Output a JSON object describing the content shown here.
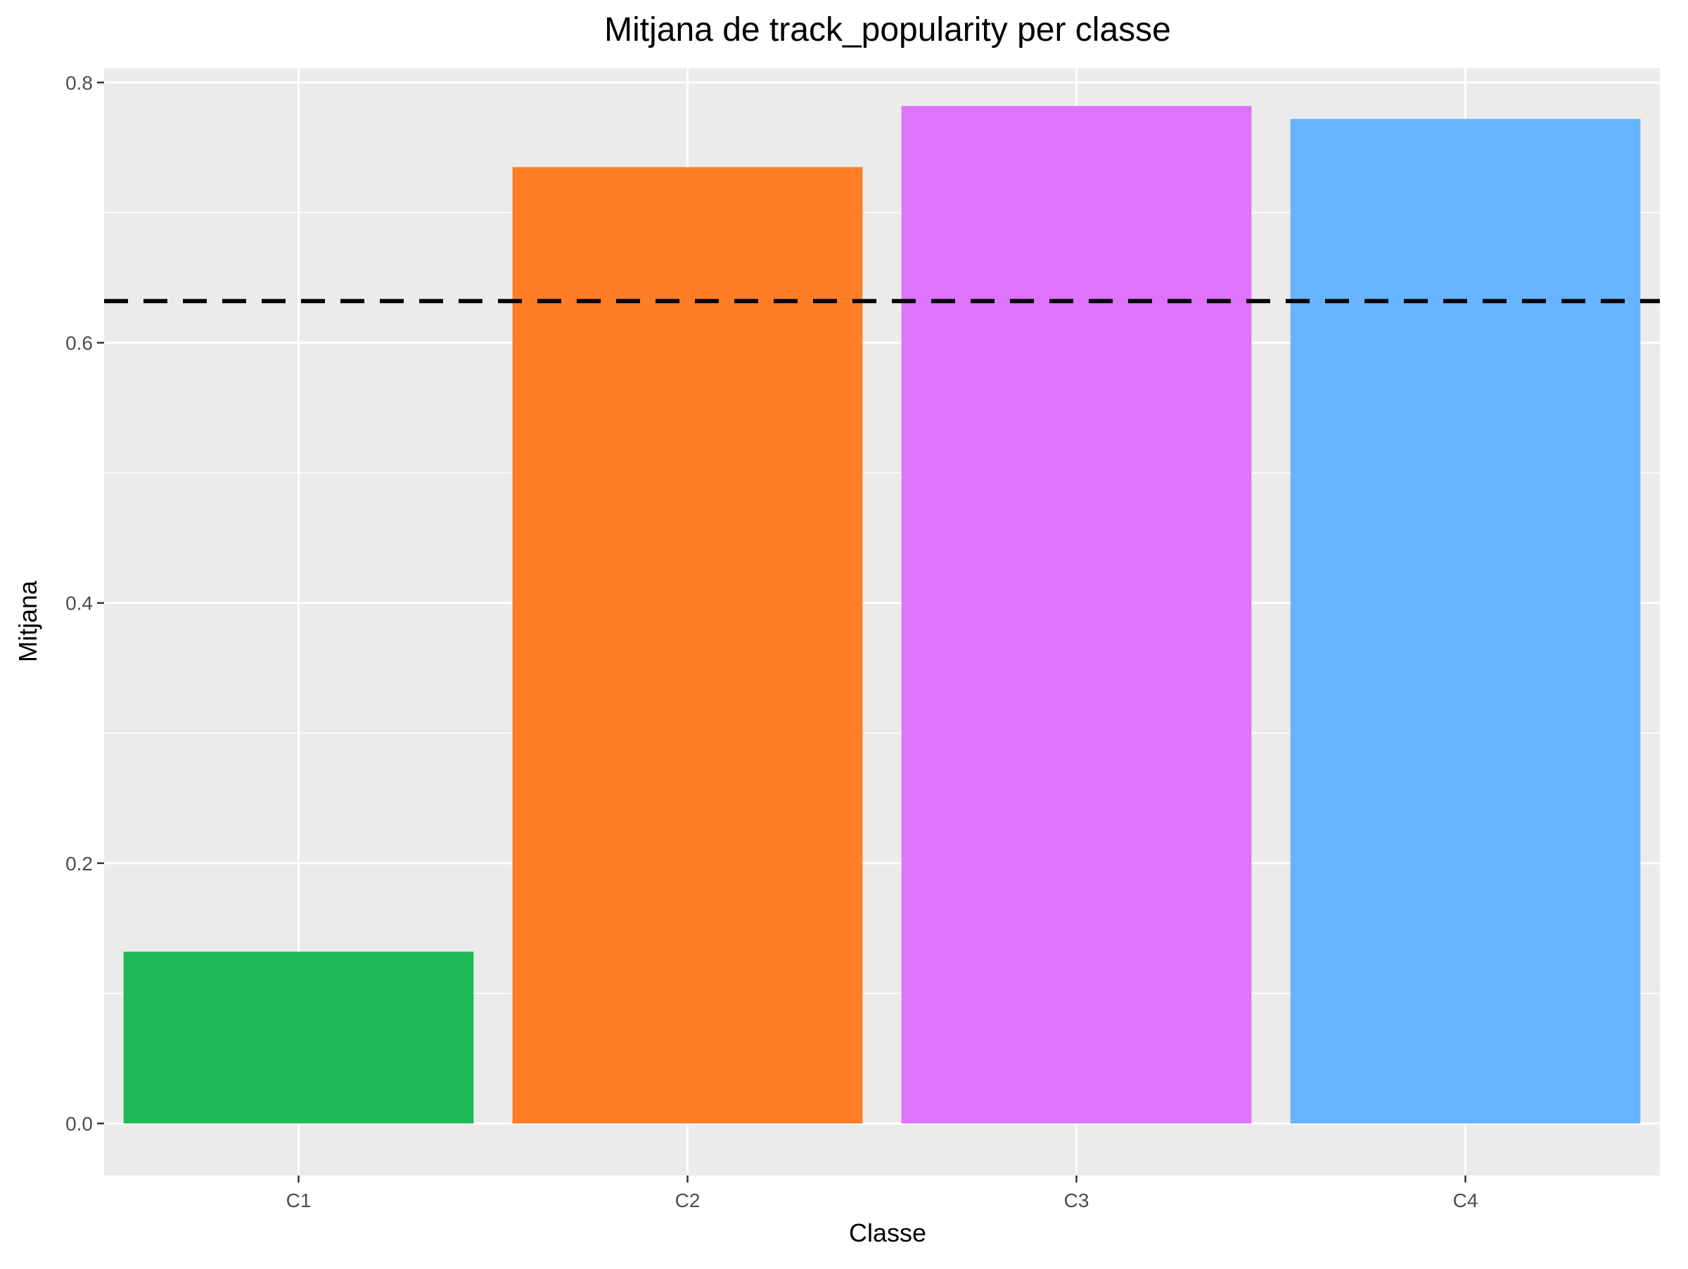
{
  "chart_data": {
    "type": "bar",
    "title": "Mitjana de track_popularity per classe",
    "xlabel": "Classe",
    "ylabel": "Mitjana",
    "categories": [
      "C1",
      "C2",
      "C3",
      "C4"
    ],
    "values": [
      0.132,
      0.735,
      0.782,
      0.772
    ],
    "colors": [
      "#1FBA57",
      "#FF7D24",
      "#DD74FB",
      "#66B4FF"
    ],
    "ylim": [
      -0.04,
      0.811
    ],
    "yticks": [
      0.0,
      0.2,
      0.4,
      0.6,
      0.8
    ],
    "ytick_labels": [
      "0.0",
      "0.2",
      "0.4",
      "0.6",
      "0.8"
    ],
    "reference_line": {
      "value": 0.632,
      "style": "dashed",
      "color": "#000000"
    },
    "grid": true,
    "legend": "none",
    "background": "#EBEBEB"
  }
}
